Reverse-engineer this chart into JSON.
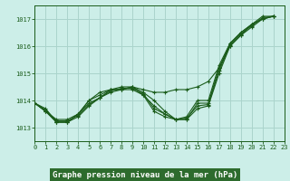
{
  "title": "Graphe pression niveau de la mer (hPa)",
  "bg_color": "#cceee8",
  "grid_color": "#aad4cc",
  "line_color": "#1a5c1a",
  "xlim": [
    0,
    23
  ],
  "ylim": [
    1012.5,
    1017.5
  ],
  "yticks": [
    1013,
    1014,
    1015,
    1016,
    1017
  ],
  "xticks": [
    0,
    1,
    2,
    3,
    4,
    5,
    6,
    7,
    8,
    9,
    10,
    11,
    12,
    13,
    14,
    15,
    16,
    17,
    18,
    19,
    20,
    21,
    22,
    23
  ],
  "series": [
    [
      1013.9,
      1013.7,
      1013.2,
      1013.2,
      1013.5,
      1014.0,
      1014.3,
      1014.4,
      1014.4,
      1014.5,
      1014.4,
      1014.3,
      1014.3,
      1014.4,
      1014.4,
      1014.5,
      1014.7,
      1015.2,
      1016.0,
      1016.4,
      1016.8,
      1017.0,
      1017.1
    ],
    [
      1013.9,
      1013.6,
      1013.2,
      1013.2,
      1013.4,
      1013.8,
      1014.1,
      1014.3,
      1014.4,
      1014.4,
      1014.2,
      1013.6,
      1013.4,
      1013.3,
      1013.3,
      1013.7,
      1013.8,
      1015.0,
      1016.0,
      1016.4,
      1016.7,
      1017.0,
      1017.1
    ],
    [
      1013.9,
      1013.6,
      1013.2,
      1013.2,
      1013.5,
      1013.9,
      1014.1,
      1014.4,
      1014.4,
      1014.5,
      1014.2,
      1013.8,
      1013.5,
      1013.3,
      1013.3,
      1013.9,
      1013.9,
      1015.2,
      1016.1,
      1016.5,
      1016.8,
      1017.0,
      1017.1
    ],
    [
      1013.9,
      1013.6,
      1013.3,
      1013.3,
      1013.5,
      1014.0,
      1014.2,
      1014.4,
      1014.5,
      1014.5,
      1014.3,
      1014.0,
      1013.6,
      1013.3,
      1013.4,
      1014.0,
      1014.0,
      1015.3,
      1016.1,
      1016.5,
      1016.8,
      1017.1,
      1017.1
    ],
    [
      1013.9,
      1013.65,
      1013.25,
      1013.25,
      1013.45,
      1013.85,
      1014.1,
      1014.35,
      1014.45,
      1014.45,
      1014.25,
      1013.7,
      1013.5,
      1013.3,
      1013.35,
      1013.8,
      1013.85,
      1015.1,
      1016.05,
      1016.45,
      1016.75,
      1017.05,
      1017.1
    ]
  ],
  "x_start": 0,
  "title_fontsize": 6.5,
  "tick_fontsize": 5.0,
  "label_bg": "#2d6b2d",
  "title_color": "#ffffff"
}
